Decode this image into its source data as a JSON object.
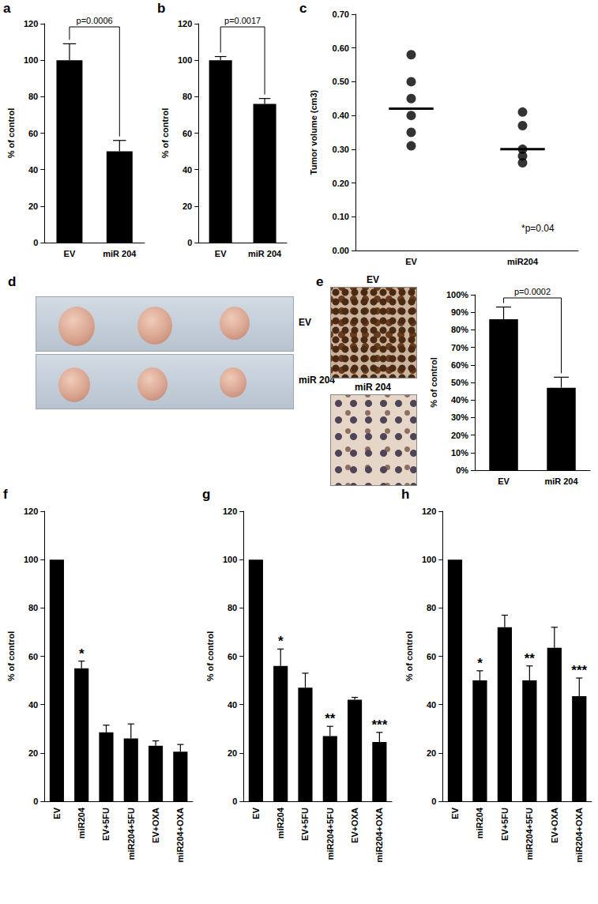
{
  "chart_data": [
    {
      "panel": "a",
      "type": "bar",
      "categories": [
        "EV",
        "miR 204"
      ],
      "values": [
        100,
        50
      ],
      "errors": [
        9,
        6
      ],
      "color": "#000000",
      "ylim": [
        0,
        120
      ],
      "yticks": [
        0,
        20,
        40,
        60,
        80,
        100,
        120
      ],
      "y_label": "% of control",
      "grid": false,
      "comparison": {
        "text": "p=0.0006",
        "between": [
          0,
          1
        ]
      }
    },
    {
      "panel": "b",
      "type": "bar",
      "categories": [
        "EV",
        "miR 204"
      ],
      "values": [
        100,
        76
      ],
      "errors": [
        2,
        3
      ],
      "color": "#000000",
      "ylim": [
        0,
        120
      ],
      "yticks": [
        0,
        20,
        40,
        60,
        80,
        100,
        120
      ],
      "y_label": "% of control",
      "grid": false,
      "comparison": {
        "text": "p=0.0017",
        "between": [
          0,
          1
        ]
      }
    },
    {
      "panel": "c",
      "type": "scatter",
      "categories": [
        "EV",
        "miR204"
      ],
      "values": [
        [
          0.58,
          0.5,
          0.45,
          0.4,
          0.35,
          0.31
        ],
        [
          0.41,
          0.37,
          0.3,
          0.28,
          0.26
        ]
      ],
      "means": [
        0.42,
        0.3
      ],
      "color": "#000000",
      "ylim": [
        0,
        0.7
      ],
      "yticks": [
        {
          "value": 0,
          "label": "0.00"
        },
        {
          "value": 0.1,
          "label": "0.10"
        },
        {
          "value": 0.2,
          "label": "0.20"
        },
        {
          "value": 0.3,
          "label": "0.30"
        },
        {
          "value": 0.4,
          "label": "0.40"
        },
        {
          "value": 0.5,
          "label": "0.50"
        },
        {
          "value": 0.6,
          "label": "0.60"
        },
        {
          "value": 0.7,
          "label": "0.70"
        }
      ],
      "y_label": "Tumor volume (cm3)",
      "grid": false,
      "annotation": "*p=0.04"
    },
    {
      "panel": "d",
      "type": "image",
      "image_labels": [
        "EV",
        "miR 204"
      ]
    },
    {
      "panel": "e",
      "type": "bar",
      "image_labels": [
        "EV",
        "miR 204"
      ],
      "categories": [
        "EV",
        "miR 204"
      ],
      "values": [
        86,
        47
      ],
      "errors": [
        7,
        6
      ],
      "color": "#000000",
      "ylim": [
        0,
        100
      ],
      "yticks": [
        {
          "value": 0,
          "label": "0%"
        },
        {
          "value": 10,
          "label": "10%"
        },
        {
          "value": 20,
          "label": "20%"
        },
        {
          "value": 30,
          "label": "30%"
        },
        {
          "value": 40,
          "label": "40%"
        },
        {
          "value": 50,
          "label": "50%"
        },
        {
          "value": 60,
          "label": "60%"
        },
        {
          "value": 70,
          "label": "70%"
        },
        {
          "value": 80,
          "label": "80%"
        },
        {
          "value": 90,
          "label": "90%"
        },
        {
          "value": 100,
          "label": "100%"
        }
      ],
      "y_label": "% of control",
      "grid": false,
      "comparison": {
        "text": "p=0.0002",
        "between": [
          0,
          1
        ]
      }
    },
    {
      "panel": "f",
      "type": "bar",
      "categories": [
        "EV",
        "miR204",
        "EV+5FU",
        "miR204+5FU",
        "EV+OXA",
        "miR204+OXA"
      ],
      "values": [
        100,
        55,
        28.5,
        26,
        23,
        20.5
      ],
      "errors": [
        0,
        3,
        3,
        6,
        2,
        3
      ],
      "annotations": [
        null,
        "*",
        null,
        null,
        null,
        null
      ],
      "color": "#000000",
      "ylim": [
        0,
        120
      ],
      "yticks": [
        0,
        20,
        40,
        60,
        80,
        100,
        120
      ],
      "y_label": "% of control",
      "grid": false
    },
    {
      "panel": "g",
      "type": "bar",
      "categories": [
        "EV",
        "miR204",
        "EV+5FU",
        "miR204+5FU",
        "EV+OXA",
        "miR204+OXA"
      ],
      "values": [
        100,
        56,
        47,
        27,
        42,
        24.5
      ],
      "errors": [
        0,
        7,
        6,
        4,
        1,
        4
      ],
      "annotations": [
        null,
        "*",
        null,
        "**",
        null,
        "***"
      ],
      "color": "#000000",
      "ylim": [
        0,
        120
      ],
      "yticks": [
        0,
        20,
        40,
        60,
        80,
        100,
        120
      ],
      "y_label": "% of control",
      "grid": false
    },
    {
      "panel": "h",
      "type": "bar",
      "categories": [
        "EV",
        "miR204",
        "EV+5FU",
        "miR204+5FU",
        "EV+OXA",
        "miR204+OXA"
      ],
      "values": [
        100,
        50,
        72,
        50,
        63.5,
        43.5
      ],
      "errors": [
        0,
        4,
        5,
        6,
        8.5,
        7.5
      ],
      "annotations": [
        null,
        "*",
        null,
        "**",
        null,
        "***"
      ],
      "color": "#000000",
      "ylim": [
        0,
        120
      ],
      "yticks": [
        0,
        20,
        40,
        60,
        80,
        100,
        120
      ],
      "y_label": "% of control",
      "grid": false
    }
  ]
}
